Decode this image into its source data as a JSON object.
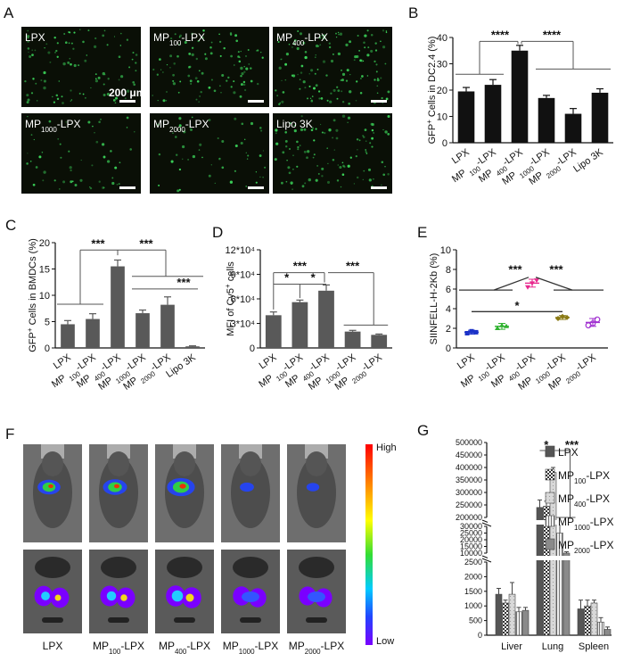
{
  "panel_letters": {
    "A": "A",
    "B": "B",
    "C": "C",
    "D": "D",
    "E": "E",
    "F": "F",
    "G": "G"
  },
  "colors": {
    "bar_dark": "#111111",
    "bar_gray": "#595959",
    "micro_bg": "#0a0f06",
    "cell_green": "#3cd65a",
    "mouse_bg": "#6e6e6e",
    "organ_bg": "#5a5a5a"
  },
  "microscopy": {
    "tiles": [
      {
        "base": "LPX",
        "sub": "",
        "suffix": ""
      },
      {
        "base": "MP",
        "sub": "100",
        "suffix": "-LPX"
      },
      {
        "base": "MP",
        "sub": "400",
        "suffix": "-LPX"
      },
      {
        "base": "MP",
        "sub": "1000",
        "suffix": "-LPX"
      },
      {
        "base": "MP",
        "sub": "2000",
        "suffix": "-LPX"
      },
      {
        "base": "Lipo 3K",
        "sub": "",
        "suffix": ""
      }
    ],
    "scalebar_label": "200 μm",
    "densities": [
      0.55,
      0.55,
      0.75,
      0.3,
      0.3,
      0.6
    ]
  },
  "imaging": {
    "groups": [
      {
        "base": "LPX",
        "sub": "",
        "suffix": ""
      },
      {
        "base": "MP",
        "sub": "100",
        "suffix": "-LPX"
      },
      {
        "base": "MP",
        "sub": "400",
        "suffix": "-LPX"
      },
      {
        "base": "MP",
        "sub": "1000",
        "suffix": "-LPX"
      },
      {
        "base": "MP",
        "sub": "2000",
        "suffix": "-LPX"
      }
    ],
    "colorbar_high": "High",
    "colorbar_low": "Low",
    "intensity": [
      0.7,
      0.75,
      0.9,
      0.35,
      0.3
    ]
  },
  "chart_data": [
    {
      "panel": "B",
      "type": "bar",
      "ylabel_pre": "GFP",
      "ylabel_sup": "+",
      "ylabel_post": " Cells in DC2.4 (%)",
      "categories": [
        {
          "base": "LPX",
          "sub": "",
          "suffix": ""
        },
        {
          "base": "MP ",
          "sub": "100",
          "suffix": "-LPX"
        },
        {
          "base": "MP ",
          "sub": "400",
          "suffix": "-LPX"
        },
        {
          "base": "MP ",
          "sub": "1000",
          "suffix": "-LPX"
        },
        {
          "base": "MP ",
          "sub": "2000",
          "suffix": "-LPX"
        },
        {
          "base": "Lipo 3K",
          "sub": "",
          "suffix": ""
        }
      ],
      "values": [
        19.5,
        22,
        35,
        17,
        11,
        19
      ],
      "errors": [
        1.5,
        2,
        2,
        1,
        2,
        1.5
      ],
      "ylim": [
        0,
        40
      ],
      "yticks": [
        "0",
        "10",
        "20",
        "30",
        "40"
      ],
      "ytick_values": [
        0,
        10,
        20,
        30,
        40
      ],
      "significance": [
        "****",
        "****"
      ]
    },
    {
      "panel": "C",
      "type": "bar",
      "ylabel_pre": "GFP",
      "ylabel_sup": "+",
      "ylabel_post": " Cells in BMDCs (%)",
      "categories": [
        {
          "base": "LPX",
          "sub": "",
          "suffix": ""
        },
        {
          "base": "MP ",
          "sub": "100",
          "suffix": "-LPX"
        },
        {
          "base": "MP ",
          "sub": "400",
          "suffix": "-LPX"
        },
        {
          "base": "MP ",
          "sub": "1000",
          "suffix": "-LPX"
        },
        {
          "base": "MP ",
          "sub": "2000",
          "suffix": "-LPX"
        },
        {
          "base": "Lipo 3K",
          "sub": "",
          "suffix": ""
        }
      ],
      "values": [
        4.5,
        5.5,
        15.5,
        6.6,
        8.2,
        0.3
      ],
      "errors": [
        0.7,
        1.0,
        1.2,
        0.6,
        1.5,
        0.1
      ],
      "ylim": [
        0,
        20
      ],
      "yticks": [
        "0",
        "5",
        "10",
        "15",
        "20"
      ],
      "ytick_values": [
        0,
        5,
        10,
        15,
        20
      ],
      "significance": [
        "***",
        "***",
        "***"
      ]
    },
    {
      "panel": "D",
      "type": "bar",
      "ylabel_pre": "MFI of Cy5",
      "ylabel_sup": "+",
      "ylabel_post": " cells",
      "categories": [
        {
          "base": "LPX",
          "sub": "",
          "suffix": ""
        },
        {
          "base": "MP ",
          "sub": "100",
          "suffix": "-LPX"
        },
        {
          "base": "MP ",
          "sub": "400",
          "suffix": "-LPX"
        },
        {
          "base": "MP ",
          "sub": "1000",
          "suffix": "-LPX"
        },
        {
          "base": "MP ",
          "sub": "2000",
          "suffix": "-LPX"
        }
      ],
      "values": [
        40000,
        56000,
        70000,
        20000,
        16000
      ],
      "errors": [
        4000,
        2500,
        7000,
        1500,
        1000
      ],
      "ylim": [
        0,
        120000
      ],
      "yticks": [
        "0",
        "3*10⁴",
        "6*10⁴",
        "9*10⁴",
        "12*10⁴"
      ],
      "ytick_values": [
        0,
        30000,
        60000,
        90000,
        120000
      ],
      "significance": [
        "***",
        "*",
        "*",
        "***"
      ]
    },
    {
      "panel": "E",
      "type": "scatter",
      "ylabel": "SIINFELL-H-2Kb (%)",
      "categories": [
        {
          "base": "LPX",
          "sub": "",
          "suffix": ""
        },
        {
          "base": "MP ",
          "sub": "100",
          "suffix": "-LPX"
        },
        {
          "base": "MP ",
          "sub": "400",
          "suffix": "-LPX"
        },
        {
          "base": "MP ",
          "sub": "1000",
          "suffix": "-LPX"
        },
        {
          "base": "MP ",
          "sub": "2000",
          "suffix": "-LPX"
        }
      ],
      "points": [
        [
          1.5,
          1.7,
          1.6
        ],
        [
          2.0,
          2.3,
          2.2
        ],
        [
          6.2,
          6.6,
          6.9
        ],
        [
          3.0,
          3.2,
          3.1
        ],
        [
          2.3,
          2.5,
          2.9
        ]
      ],
      "means": [
        1.6,
        2.2,
        6.6,
        3.1,
        2.6
      ],
      "sd": [
        0.2,
        0.3,
        0.4,
        0.2,
        0.4
      ],
      "series_colors": [
        "#1c33c8",
        "#2fb22f",
        "#e8288e",
        "#8a7a14",
        "#a030d0"
      ],
      "ylim": [
        0,
        10
      ],
      "yticks": [
        "0",
        "2",
        "4",
        "6",
        "8",
        "10"
      ],
      "ytick_values": [
        0,
        2,
        4,
        6,
        8,
        10
      ],
      "significance": [
        "***",
        "***",
        "*"
      ]
    },
    {
      "panel": "G",
      "type": "bar",
      "categories": [
        "Liver",
        "Lung",
        "Spleen"
      ],
      "legend": [
        {
          "base": "LPX",
          "sub": "",
          "suffix": ""
        },
        {
          "base": "MP",
          "sub": "100",
          "suffix": "-LPX"
        },
        {
          "base": "MP",
          "sub": "400",
          "suffix": "-LPX"
        },
        {
          "base": "MP",
          "sub": "1000",
          "suffix": "-LPX"
        },
        {
          "base": "MP",
          "sub": "2000",
          "suffix": "-LPX"
        }
      ],
      "series": [
        {
          "values": [
            1400,
            240000,
            900
          ],
          "errors": [
            200,
            30000,
            300
          ]
        },
        {
          "values": [
            1100,
            245000,
            1000
          ],
          "errors": [
            100,
            20000,
            200
          ]
        },
        {
          "values": [
            1400,
            380000,
            1100
          ],
          "errors": [
            400,
            20000,
            100
          ]
        },
        {
          "values": [
            800,
            25000,
            450
          ],
          "errors": [
            150,
            8000,
            150
          ]
        },
        {
          "values": [
            850,
            10000,
            200
          ],
          "errors": [
            100,
            1000,
            80
          ]
        }
      ],
      "yticks": [
        "0",
        "500",
        "1000",
        "1500",
        "2000",
        "2500",
        "10000",
        "15000",
        "20000",
        "25000",
        "30000",
        "200000",
        "250000",
        "300000",
        "350000",
        "400000",
        "450000",
        "500000"
      ],
      "significance": [
        "*",
        "***"
      ]
    }
  ]
}
